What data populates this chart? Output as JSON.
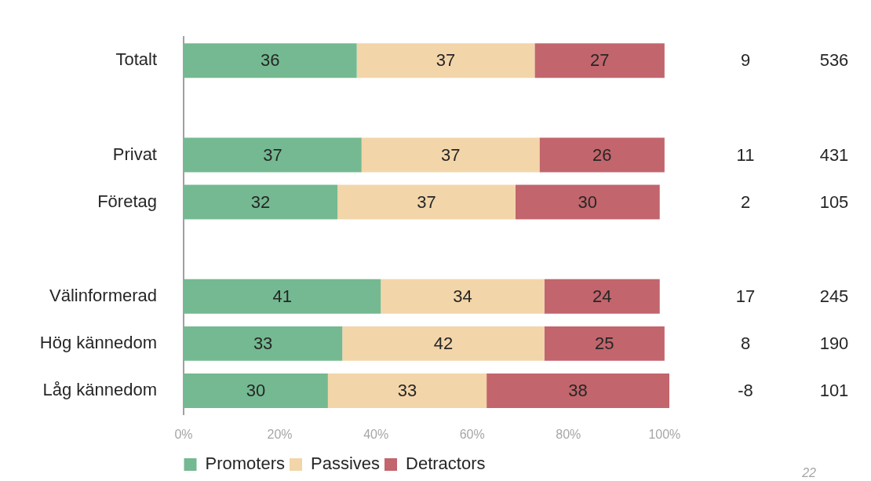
{
  "chart_data": {
    "type": "bar",
    "orientation": "horizontal",
    "stacked": true,
    "categories": [
      "Totalt",
      null,
      "Privat",
      "Företag",
      null,
      "Välinformerad",
      "Hög kännedom",
      "Låg kännedom"
    ],
    "series": [
      {
        "name": "Promoters",
        "color": "#74b991",
        "values": [
          36,
          null,
          37,
          32,
          null,
          41,
          33,
          30
        ]
      },
      {
        "name": "Passives",
        "color": "#f2d5a9",
        "values": [
          37,
          null,
          37,
          37,
          null,
          34,
          42,
          33
        ]
      },
      {
        "name": "Detractors",
        "color": "#c2656c",
        "values": [
          27,
          null,
          26,
          30,
          null,
          24,
          25,
          38
        ]
      }
    ],
    "xlim": [
      0,
      101
    ],
    "xticks": [
      {
        "value": 0,
        "label": "0%"
      },
      {
        "value": 20,
        "label": "20%"
      },
      {
        "value": 40,
        "label": "40%"
      },
      {
        "value": 60,
        "label": "60%"
      },
      {
        "value": 80,
        "label": "80%"
      },
      {
        "value": 100,
        "label": "100%"
      }
    ],
    "data_labels": true,
    "legend": "bottom",
    "grid": false,
    "annotations": [
      "9",
      "536",
      "11",
      "431",
      "2",
      "105",
      "17",
      "245",
      "8",
      "190",
      "-8",
      "101",
      "22"
    ]
  }
}
